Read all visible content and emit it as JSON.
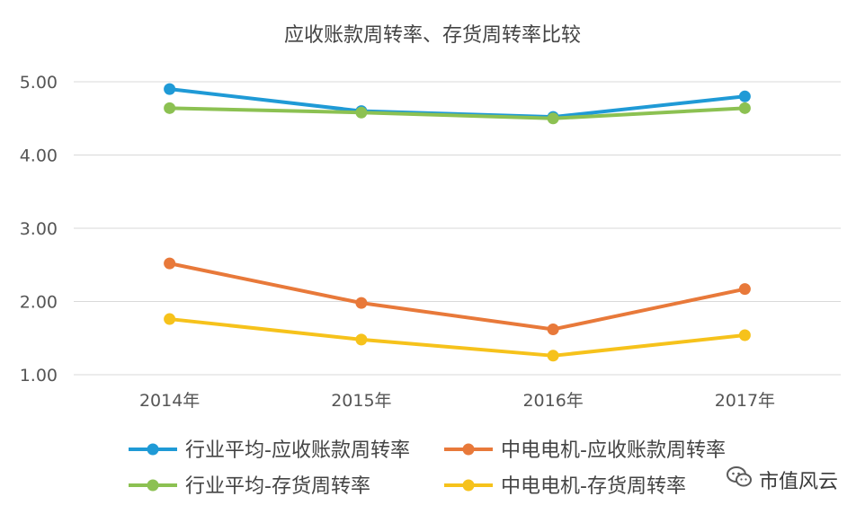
{
  "chart_data": {
    "type": "line",
    "title": "应收账款周转率、存货周转率比较",
    "xlabel": "",
    "ylabel": "",
    "categories": [
      "2014年",
      "2015年",
      "2016年",
      "2017年"
    ],
    "ylim": [
      1.0,
      5.0
    ],
    "yticks": [
      "1.00",
      "2.00",
      "3.00",
      "4.00",
      "5.00"
    ],
    "grid": true,
    "legend_position": "bottom",
    "series": [
      {
        "name": "行业平均-应收账款周转率",
        "color": "#1f9ad6",
        "values": [
          4.9,
          4.6,
          4.52,
          4.8
        ]
      },
      {
        "name": "中电电机-应收账款周转率",
        "color": "#e8793a",
        "values": [
          2.52,
          1.98,
          1.62,
          2.17
        ]
      },
      {
        "name": "行业平均-存货周转率",
        "color": "#8cc152",
        "values": [
          4.64,
          4.58,
          4.5,
          4.64
        ]
      },
      {
        "name": "中电电机-存货周转率",
        "color": "#f6c21b",
        "values": [
          1.76,
          1.48,
          1.26,
          1.54
        ]
      }
    ]
  },
  "watermark": {
    "text": "市值风云",
    "icon": "wechat-icon"
  }
}
